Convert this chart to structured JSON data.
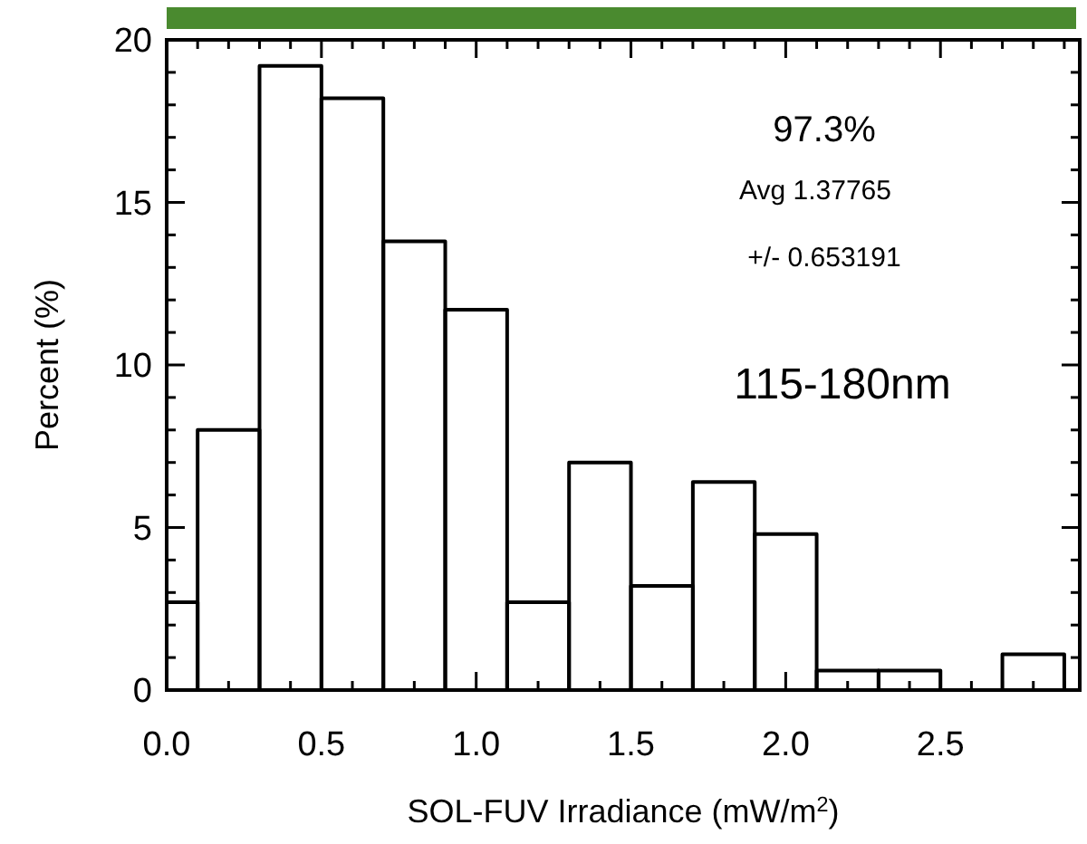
{
  "chart_data": {
    "type": "histogram",
    "xlabel": "SOL-FUV Irradiance (mW/m$^{2}$)",
    "ylabel": "Percent (%)",
    "bins": [
      0,
      0.1,
      0.3,
      0.5,
      0.7,
      0.9,
      1.1,
      1.3,
      1.5,
      1.7,
      1.9,
      2.1,
      2.3,
      2.5,
      2.7,
      2.9
    ],
    "values": [
      2.7,
      8.0,
      19.2,
      18.2,
      13.8,
      11.7,
      2.7,
      7.0,
      3.2,
      6.4,
      4.8,
      0.6,
      0.6,
      0,
      1.1
    ],
    "color": "#000000",
    "xlim": [
      0,
      2.95
    ],
    "ylim": [
      0,
      20
    ],
    "xticks": [
      {
        "value": 0,
        "label": "0.0"
      },
      {
        "value": 0.1,
        "label": null
      },
      {
        "value": 0.2,
        "label": null
      },
      {
        "value": 0.3,
        "label": null
      },
      {
        "value": 0.4,
        "label": null
      },
      {
        "value": 0.5,
        "label": "0.5"
      },
      {
        "value": 0.6,
        "label": null
      },
      {
        "value": 0.7,
        "label": null
      },
      {
        "value": 0.8,
        "label": null
      },
      {
        "value": 0.9,
        "label": null
      },
      {
        "value": 1,
        "label": "1.0"
      },
      {
        "value": 1.1,
        "label": null
      },
      {
        "value": 1.2,
        "label": null
      },
      {
        "value": 1.3,
        "label": null
      },
      {
        "value": 1.4,
        "label": null
      },
      {
        "value": 1.5,
        "label": "1.5"
      },
      {
        "value": 1.6,
        "label": null
      },
      {
        "value": 1.7,
        "label": null
      },
      {
        "value": 1.8,
        "label": null
      },
      {
        "value": 1.9,
        "label": null
      },
      {
        "value": 2,
        "label": "2.0"
      },
      {
        "value": 2.1,
        "label": null
      },
      {
        "value": 2.2,
        "label": null
      },
      {
        "value": 2.3,
        "label": null
      },
      {
        "value": 2.4,
        "label": null
      },
      {
        "value": 2.5,
        "label": "2.5"
      },
      {
        "value": 2.6,
        "label": null
      },
      {
        "value": 2.7,
        "label": null
      },
      {
        "value": 2.8,
        "label": null
      },
      {
        "value": 2.9,
        "label": null
      }
    ],
    "yticks": [
      0,
      {
        "value": 1,
        "label": null
      },
      {
        "value": 2,
        "label": null
      },
      {
        "value": 3,
        "label": null
      },
      {
        "value": 4,
        "label": null
      },
      5,
      {
        "value": 6,
        "label": null
      },
      {
        "value": 7,
        "label": null
      },
      {
        "value": 8,
        "label": null
      },
      {
        "value": 9,
        "label": null
      },
      10,
      {
        "value": 11,
        "label": null
      },
      {
        "value": 12,
        "label": null
      },
      {
        "value": 13,
        "label": null
      },
      {
        "value": 14,
        "label": null
      },
      15,
      {
        "value": 16,
        "label": null
      },
      {
        "value": 17,
        "label": null
      },
      {
        "value": 18,
        "label": null
      },
      {
        "value": 19,
        "label": null
      },
      20
    ],
    "grid": false,
    "annotations": [
      "97.3%",
      "Avg 1.37765",
      "+/- 0.653191",
      "115-180nm"
    ]
  }
}
